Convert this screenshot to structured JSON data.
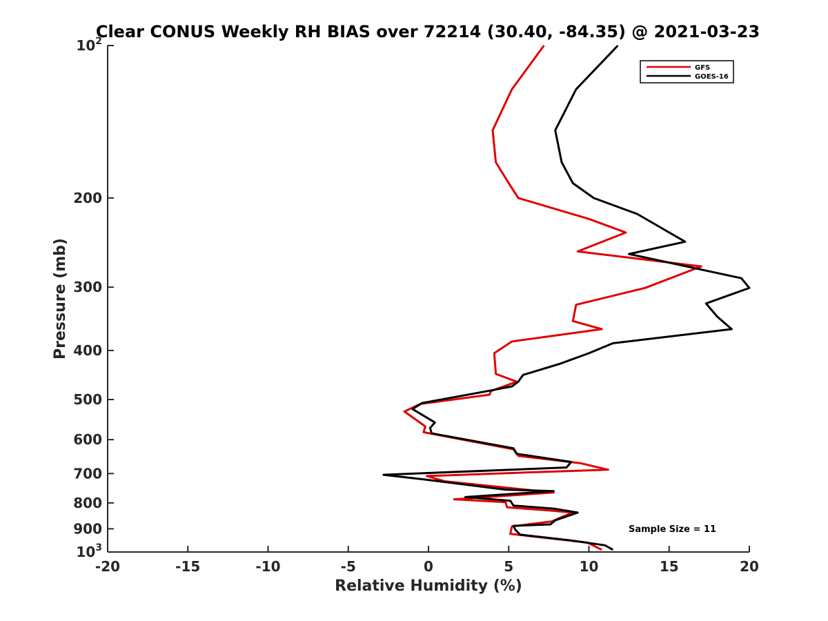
{
  "chart_data": {
    "type": "line",
    "title": "Clear CONUS Weekly RH BIAS over 72214 (30.40, -84.35) @ 2021-03-23",
    "xlabel": "Relative Humidity (%)",
    "ylabel": "Pressure (mb)",
    "xlim": [
      -20,
      20
    ],
    "ylim": [
      100,
      1000
    ],
    "yscale": "log",
    "y_reversed": true,
    "x_ticks": [
      -20,
      -15,
      -10,
      -5,
      0,
      5,
      10,
      15,
      20
    ],
    "x_tick_labels": [
      "-20",
      "-15",
      "-10",
      "-5",
      "0",
      "5",
      "10",
      "15",
      "20"
    ],
    "y_ticks": [
      100,
      200,
      300,
      400,
      500,
      600,
      700,
      800,
      900,
      1000
    ],
    "y_tick_labels": [
      {
        "base": "10",
        "exp": "2"
      },
      {
        "base": "200",
        "exp": ""
      },
      {
        "base": "300",
        "exp": ""
      },
      {
        "base": "400",
        "exp": ""
      },
      {
        "base": "500",
        "exp": ""
      },
      {
        "base": "600",
        "exp": ""
      },
      {
        "base": "700",
        "exp": ""
      },
      {
        "base": "800",
        "exp": ""
      },
      {
        "base": "900",
        "exp": ""
      },
      {
        "base": "10",
        "exp": "3"
      }
    ],
    "legend_position": "top-right",
    "annotation": "Sample Size = 11",
    "series": [
      {
        "name": "GFS",
        "color": "#e00000",
        "points": [
          [
            7.2,
            100
          ],
          [
            5.2,
            122
          ],
          [
            4.0,
            147
          ],
          [
            4.2,
            170
          ],
          [
            5.0,
            187
          ],
          [
            5.6,
            200
          ],
          [
            10.0,
            220
          ],
          [
            12.3,
            234
          ],
          [
            9.3,
            255
          ],
          [
            17.0,
            273
          ],
          [
            13.5,
            301
          ],
          [
            9.2,
            325
          ],
          [
            9.0,
            350
          ],
          [
            10.8,
            363
          ],
          [
            5.2,
            384
          ],
          [
            4.1,
            405
          ],
          [
            4.2,
            445
          ],
          [
            5.5,
            461
          ],
          [
            3.9,
            481
          ],
          [
            3.8,
            489
          ],
          [
            -0.5,
            510
          ],
          [
            -1.5,
            528
          ],
          [
            -0.2,
            565
          ],
          [
            -0.3,
            580
          ],
          [
            5.3,
            627
          ],
          [
            5.6,
            646
          ],
          [
            9.5,
            668
          ],
          [
            11.2,
            688
          ],
          [
            7.5,
            694
          ],
          [
            -0.1,
            708
          ],
          [
            1.0,
            725
          ],
          [
            7.8,
            763
          ],
          [
            1.6,
            787
          ],
          [
            4.8,
            797
          ],
          [
            4.9,
            816
          ],
          [
            7.5,
            828
          ],
          [
            9.0,
            836
          ],
          [
            8.2,
            856
          ],
          [
            7.7,
            870
          ],
          [
            5.2,
            890
          ],
          [
            5.1,
            921
          ],
          [
            9.9,
            958
          ],
          [
            10.8,
            990
          ]
        ]
      },
      {
        "name": "GOES-16",
        "color": "#000000",
        "points": [
          [
            11.8,
            100
          ],
          [
            9.2,
            122
          ],
          [
            7.9,
            147
          ],
          [
            8.3,
            170
          ],
          [
            9.0,
            187
          ],
          [
            10.3,
            200
          ],
          [
            13.0,
            215
          ],
          [
            16.0,
            244
          ],
          [
            12.5,
            258
          ],
          [
            19.5,
            288
          ],
          [
            20.0,
            301
          ],
          [
            17.3,
            323
          ],
          [
            18.0,
            343
          ],
          [
            18.9,
            363
          ],
          [
            11.5,
            387
          ],
          [
            10.0,
            405
          ],
          [
            8.2,
            425
          ],
          [
            5.9,
            447
          ],
          [
            5.7,
            456
          ],
          [
            5.6,
            461
          ],
          [
            5.2,
            471
          ],
          [
            3.7,
            481
          ],
          [
            -0.4,
            508
          ],
          [
            -1.0,
            522
          ],
          [
            0.4,
            555
          ],
          [
            0.1,
            569
          ],
          [
            0.2,
            583
          ],
          [
            5.3,
            624
          ],
          [
            5.5,
            640
          ],
          [
            8.9,
            664
          ],
          [
            8.6,
            681
          ],
          [
            -2.8,
            704
          ],
          [
            -0.3,
            719
          ],
          [
            4.8,
            753
          ],
          [
            7.8,
            758
          ],
          [
            2.3,
            779
          ],
          [
            5.1,
            792
          ],
          [
            5.3,
            810
          ],
          [
            7.8,
            821
          ],
          [
            9.3,
            836
          ],
          [
            7.9,
            866
          ],
          [
            7.6,
            882
          ],
          [
            5.3,
            888
          ],
          [
            5.4,
            902
          ],
          [
            5.7,
            924
          ],
          [
            8.8,
            948
          ],
          [
            11.0,
            970
          ],
          [
            11.5,
            990
          ]
        ]
      }
    ]
  }
}
